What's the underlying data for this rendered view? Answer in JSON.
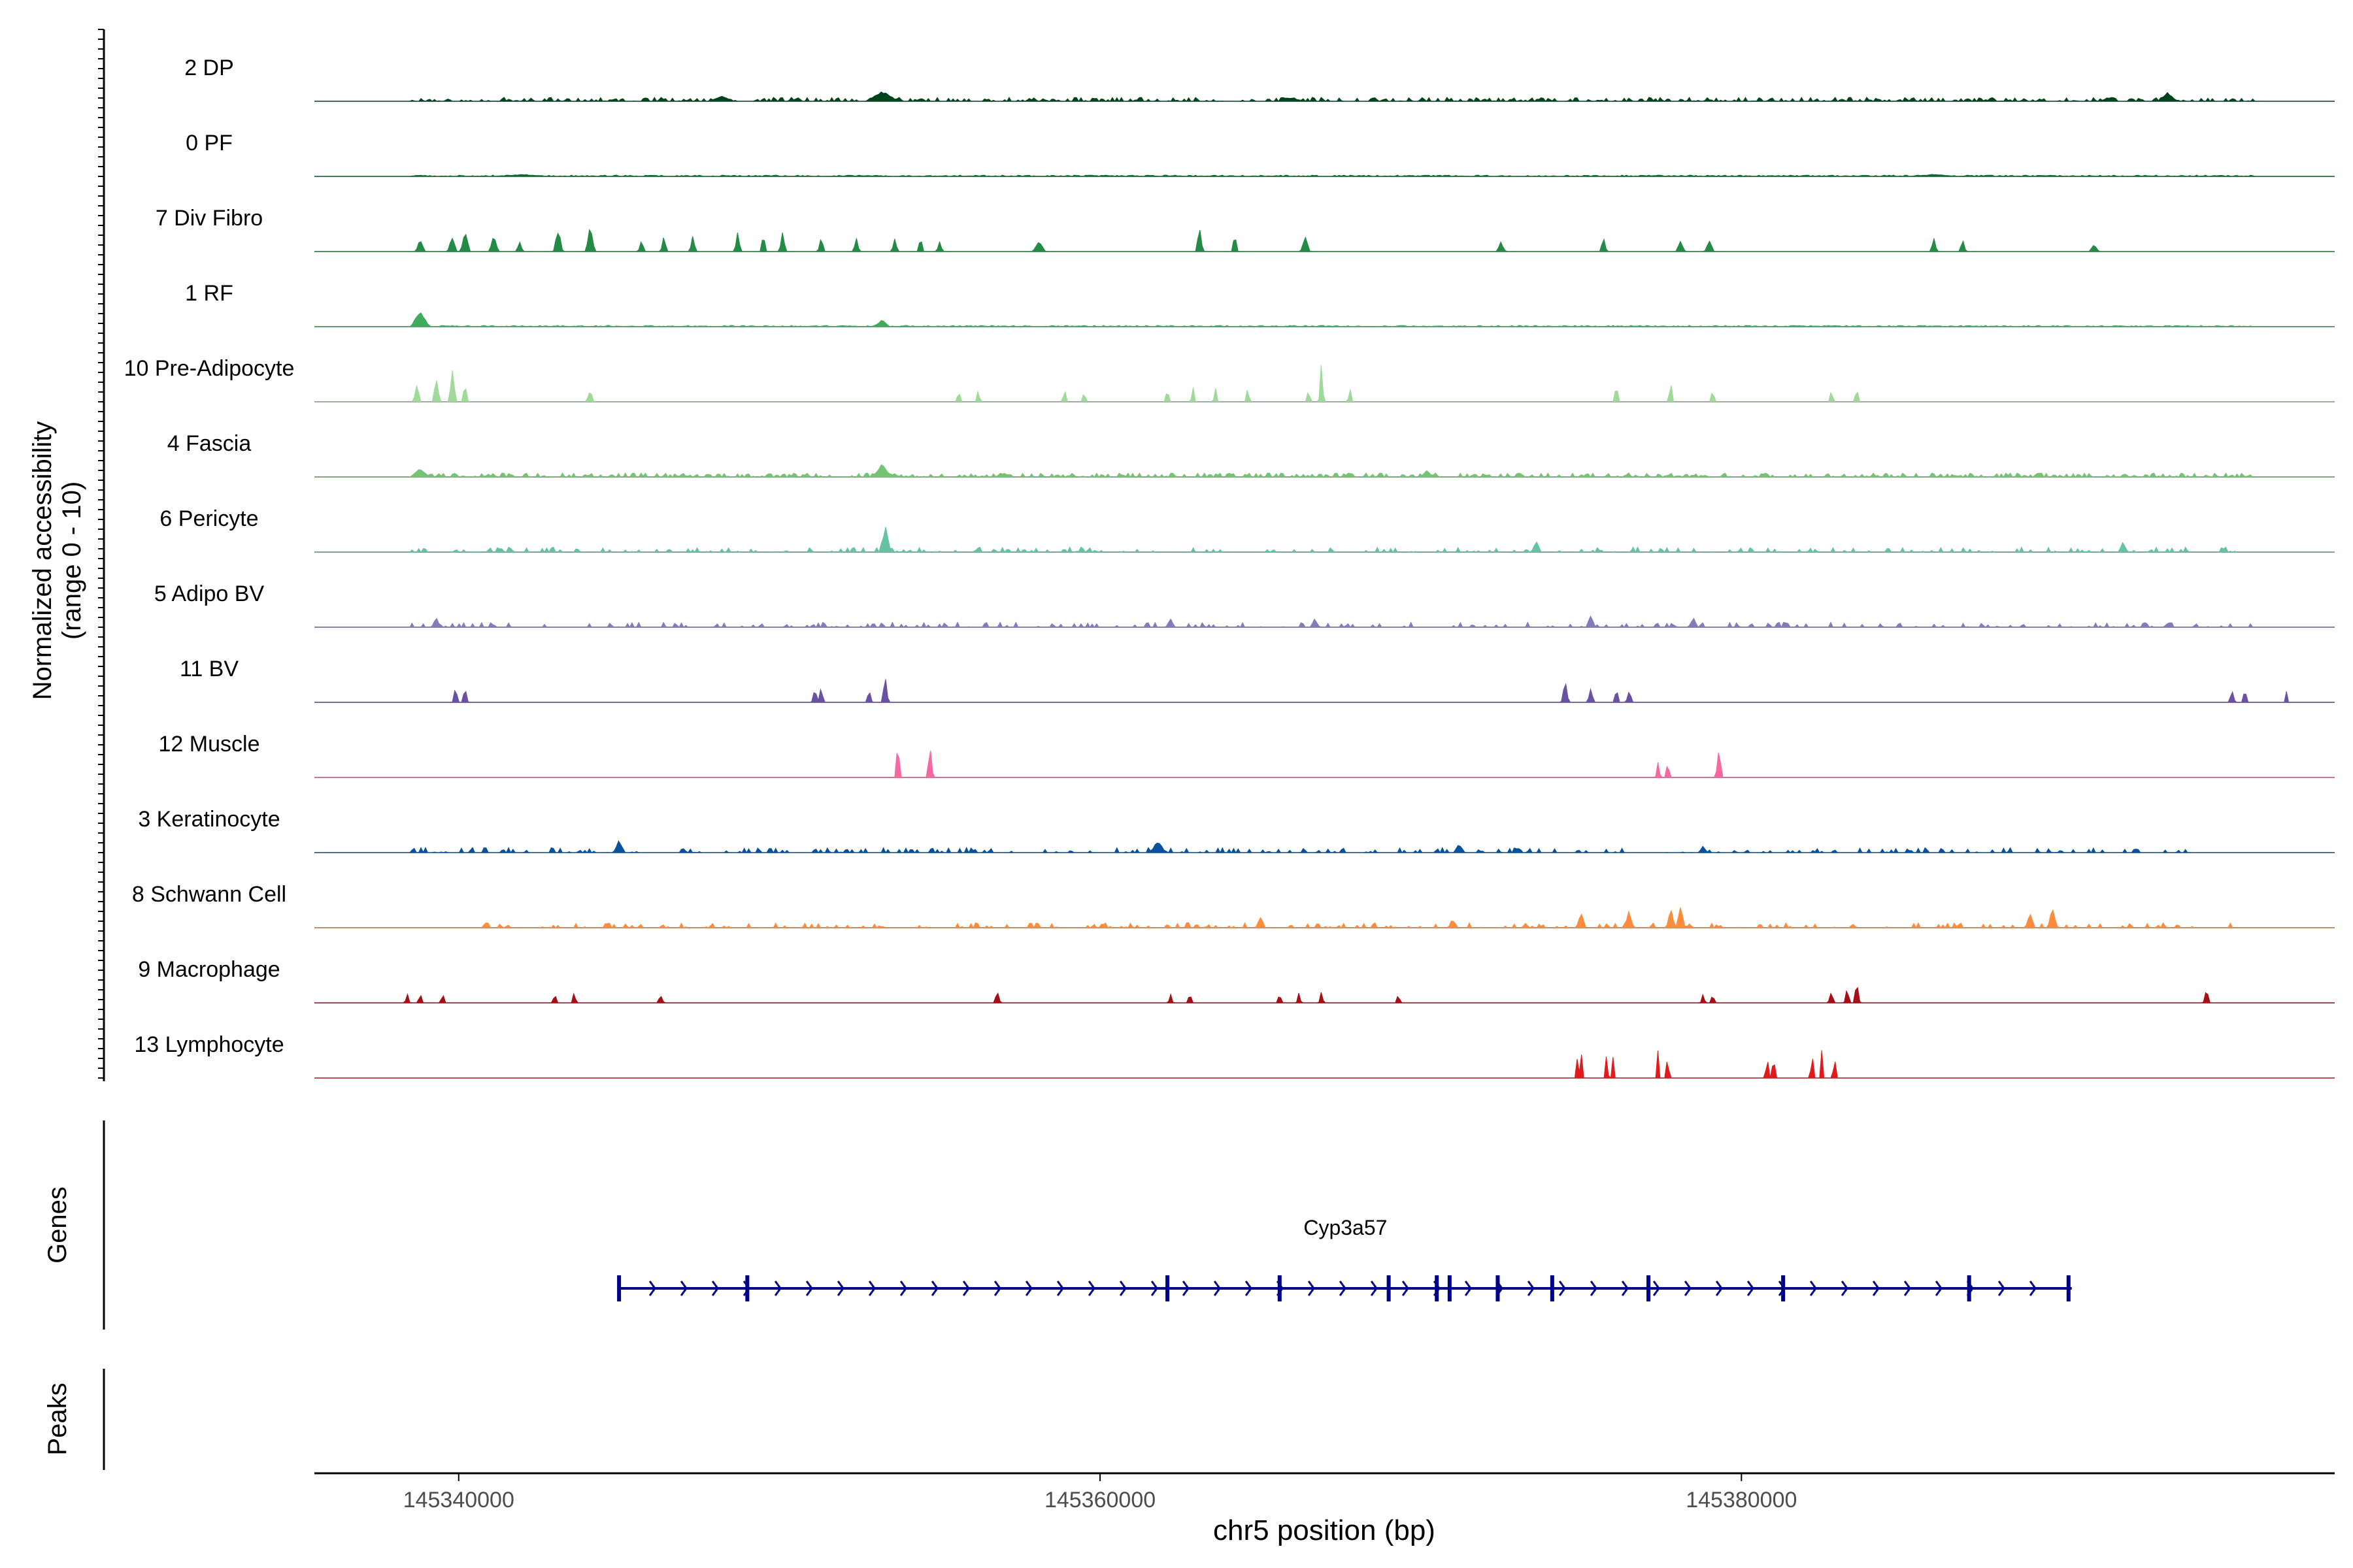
{
  "chart_data": {
    "type": "area",
    "title": "",
    "ylabel_line1": "Normalized accessibility",
    "ylabel_line2": "(range 0 - 10)",
    "xlabel": "chr5 position (bp)",
    "xlim": [
      145335500,
      145398500
    ],
    "ylim": [
      0,
      10
    ],
    "x_ticks": [
      145340000,
      145360000,
      145380000
    ],
    "x_tick_labels": [
      "145340000",
      "145360000",
      "145380000"
    ],
    "tracks": [
      {
        "name": "2 DP",
        "color": "#00441b",
        "profile": "dense",
        "seed": 11,
        "peaks": [
          [
            145353200,
            1.6,
            500
          ],
          [
            145348200,
            0.8,
            400
          ],
          [
            145393300,
            1.3,
            300
          ],
          [
            145366000,
            0.6,
            300
          ]
        ],
        "range": [
          145338500,
          145396000
        ]
      },
      {
        "name": "0 PF",
        "color": "#006d2c",
        "profile": "flat",
        "seed": 23,
        "peaks": [
          [
            145342000,
            0.3,
            800
          ],
          [
            145386000,
            0.3,
            800
          ]
        ],
        "range": [
          145338500,
          145396000
        ]
      },
      {
        "name": "7 Div Fibro",
        "color": "#238b45",
        "profile": "sparse",
        "seed": 37,
        "peaks": [
          [
            145338800,
            1.8,
            150
          ],
          [
            145339800,
            2.2,
            150
          ],
          [
            145340200,
            3.1,
            150
          ],
          [
            145341100,
            2.4,
            150
          ],
          [
            145341900,
            1.6,
            100
          ],
          [
            145343100,
            3.4,
            150
          ],
          [
            145344100,
            3.7,
            150
          ],
          [
            145345700,
            2.0,
            100
          ],
          [
            145346400,
            2.3,
            100
          ],
          [
            145347300,
            2.5,
            100
          ],
          [
            145348700,
            2.8,
            100
          ],
          [
            145349500,
            2.6,
            100
          ],
          [
            145350100,
            3.0,
            100
          ],
          [
            145351300,
            2.4,
            100
          ],
          [
            145352400,
            2.1,
            100
          ],
          [
            145353600,
            2.0,
            100
          ],
          [
            145354400,
            2.2,
            100
          ],
          [
            145355000,
            1.6,
            100
          ],
          [
            145358100,
            1.5,
            200
          ],
          [
            145363100,
            3.5,
            120
          ],
          [
            145364200,
            2.8,
            100
          ],
          [
            145366400,
            2.4,
            150
          ],
          [
            145372500,
            1.5,
            150
          ],
          [
            145375700,
            2.6,
            100
          ],
          [
            145378100,
            1.7,
            150
          ],
          [
            145379000,
            1.6,
            150
          ],
          [
            145386000,
            2.4,
            100
          ],
          [
            145386900,
            2.0,
            100
          ],
          [
            145391000,
            1.2,
            150
          ]
        ],
        "range": null
      },
      {
        "name": "1 RF",
        "color": "#41ab5d",
        "profile": "flat",
        "seed": 41,
        "peaks": [
          [
            145338800,
            2.3,
            300
          ],
          [
            145353200,
            1.0,
            250
          ]
        ],
        "range": [
          145338500,
          145396000
        ]
      },
      {
        "name": "10 Pre-Adipocyte",
        "color": "#a1d99b",
        "profile": "sparse",
        "seed": 53,
        "peaks": [
          [
            145338700,
            2.7,
            120
          ],
          [
            145339300,
            3.7,
            120
          ],
          [
            145339800,
            4.8,
            120
          ],
          [
            145340200,
            3.0,
            100
          ],
          [
            145344100,
            1.9,
            120
          ],
          [
            145355600,
            2.0,
            80
          ],
          [
            145356200,
            2.0,
            80
          ],
          [
            145358900,
            2.1,
            80
          ],
          [
            145359500,
            1.8,
            80
          ],
          [
            145362100,
            2.0,
            80
          ],
          [
            145362900,
            2.2,
            80
          ],
          [
            145363600,
            2.1,
            80
          ],
          [
            145364600,
            2.3,
            80
          ],
          [
            145366500,
            1.9,
            80
          ],
          [
            145366900,
            6.3,
            80
          ],
          [
            145367800,
            2.3,
            80
          ],
          [
            145376100,
            3.4,
            80
          ],
          [
            145377800,
            3.6,
            80
          ],
          [
            145379100,
            2.2,
            80
          ],
          [
            145382800,
            2.0,
            80
          ],
          [
            145383600,
            2.2,
            80
          ]
        ],
        "range": null
      },
      {
        "name": "4 Fascia",
        "color": "#74c476",
        "profile": "dense",
        "seed": 67,
        "peaks": [
          [
            145338800,
            1.4,
            300
          ],
          [
            145353200,
            2.0,
            300
          ],
          [
            145357000,
            0.6,
            300
          ],
          [
            145370200,
            1.0,
            200
          ]
        ],
        "range": [
          145338500,
          145396000
        ]
      },
      {
        "name": "6 Pericyte",
        "color": "#66c2a4",
        "profile": "medium",
        "seed": 79,
        "peaks": [
          [
            145353300,
            3.8,
            180
          ],
          [
            145373600,
            1.8,
            150
          ],
          [
            145391900,
            1.5,
            150
          ]
        ],
        "range": [
          145338500,
          145396000
        ]
      },
      {
        "name": "5 Adipo BV",
        "color": "#807dba",
        "profile": "medium",
        "seed": 83,
        "peaks": [
          [
            145339300,
            1.4,
            150
          ],
          [
            145362200,
            1.3,
            150
          ],
          [
            145366700,
            1.3,
            150
          ],
          [
            145375300,
            1.7,
            150
          ],
          [
            145378500,
            1.5,
            150
          ]
        ],
        "range": [
          145338500,
          145396000
        ]
      },
      {
        "name": "11 BV",
        "color": "#6a51a3",
        "profile": "sparse",
        "seed": 97,
        "peaks": [
          [
            145339900,
            2.2,
            100
          ],
          [
            145340200,
            2.1,
            100
          ],
          [
            145351100,
            2.2,
            100
          ],
          [
            145351300,
            2.2,
            100
          ],
          [
            145352800,
            2.1,
            100
          ],
          [
            145353300,
            4.2,
            100
          ],
          [
            145374500,
            3.3,
            120
          ],
          [
            145375300,
            2.2,
            100
          ],
          [
            145376100,
            2.1,
            100
          ],
          [
            145376500,
            2.0,
            100
          ],
          [
            145395300,
            2.0,
            100
          ],
          [
            145395700,
            2.0,
            100
          ],
          [
            145397000,
            1.8,
            60
          ]
        ],
        "range": null
      },
      {
        "name": "12 Muscle",
        "color": "#f768a1",
        "profile": "none",
        "seed": 101,
        "peaks": [
          [
            145353700,
            5.2,
            100
          ],
          [
            145354700,
            4.8,
            100
          ],
          [
            145377400,
            2.4,
            80
          ],
          [
            145377700,
            2.4,
            80
          ],
          [
            145379300,
            5.1,
            100
          ]
        ],
        "range": null
      },
      {
        "name": "3 Keratinocyte",
        "color": "#08519c",
        "profile": "medium",
        "seed": 113,
        "peaks": [
          [
            145345000,
            1.9,
            180
          ],
          [
            145361800,
            1.8,
            250
          ],
          [
            145371200,
            1.3,
            180
          ],
          [
            145378800,
            1.0,
            150
          ]
        ],
        "range": [
          145338500,
          145394000
        ]
      },
      {
        "name": "8 Schwann Cell",
        "color": "#fd8d3c",
        "profile": "medium",
        "seed": 127,
        "peaks": [
          [
            145365000,
            1.8,
            150
          ],
          [
            145371000,
            1.4,
            150
          ],
          [
            145375000,
            2.4,
            150
          ],
          [
            145376500,
            2.6,
            150
          ],
          [
            145377800,
            2.8,
            150
          ],
          [
            145378100,
            3.4,
            150
          ],
          [
            145389000,
            2.6,
            150
          ],
          [
            145389700,
            3.2,
            150
          ]
        ],
        "range": [
          145340500,
          145395300
        ]
      },
      {
        "name": "9 Macrophage",
        "color": "#a50f15",
        "profile": "sparse",
        "seed": 131,
        "peaks": [
          [
            145338400,
            1.6,
            80
          ],
          [
            145338800,
            1.5,
            80
          ],
          [
            145339500,
            1.5,
            80
          ],
          [
            145343000,
            1.6,
            80
          ],
          [
            145343600,
            1.6,
            80
          ],
          [
            145346300,
            1.4,
            100
          ],
          [
            145356800,
            1.9,
            100
          ],
          [
            145362200,
            1.5,
            80
          ],
          [
            145362800,
            1.5,
            80
          ],
          [
            145365600,
            1.5,
            80
          ],
          [
            145366200,
            1.5,
            80
          ],
          [
            145366900,
            1.7,
            80
          ],
          [
            145369300,
            1.5,
            80
          ],
          [
            145378800,
            1.6,
            80
          ],
          [
            145379100,
            1.5,
            80
          ],
          [
            145382800,
            1.7,
            100
          ],
          [
            145383300,
            2.3,
            100
          ],
          [
            145383600,
            3.4,
            100
          ],
          [
            145394500,
            2.4,
            100
          ]
        ],
        "range": null
      },
      {
        "name": "13 Lymphocyte",
        "color": "#e31a1c",
        "profile": "none",
        "seed": 137,
        "peaks": [
          [
            145374900,
            4.6,
            60
          ],
          [
            145375000,
            4.6,
            60
          ],
          [
            145375800,
            4.4,
            60
          ],
          [
            145376000,
            4.2,
            60
          ],
          [
            145377400,
            4.8,
            60
          ],
          [
            145377700,
            4.6,
            60
          ],
          [
            145380800,
            4.7,
            60
          ],
          [
            145381000,
            4.7,
            60
          ],
          [
            145382200,
            4.9,
            60
          ],
          [
            145382500,
            4.6,
            60
          ],
          [
            145382900,
            4.4,
            60
          ]
        ],
        "range": null
      }
    ],
    "genes_label": "Genes",
    "peaks_label": "Peaks",
    "gene": {
      "name": "Cyp3a57",
      "color": "#00008b",
      "start": 145345000,
      "end": 145390300,
      "exons": [
        145345000,
        145349000,
        145362100,
        145365600,
        145369000,
        145370500,
        145370900,
        145372400,
        145374100,
        145377100,
        145381300,
        145387100,
        145390200
      ]
    }
  }
}
